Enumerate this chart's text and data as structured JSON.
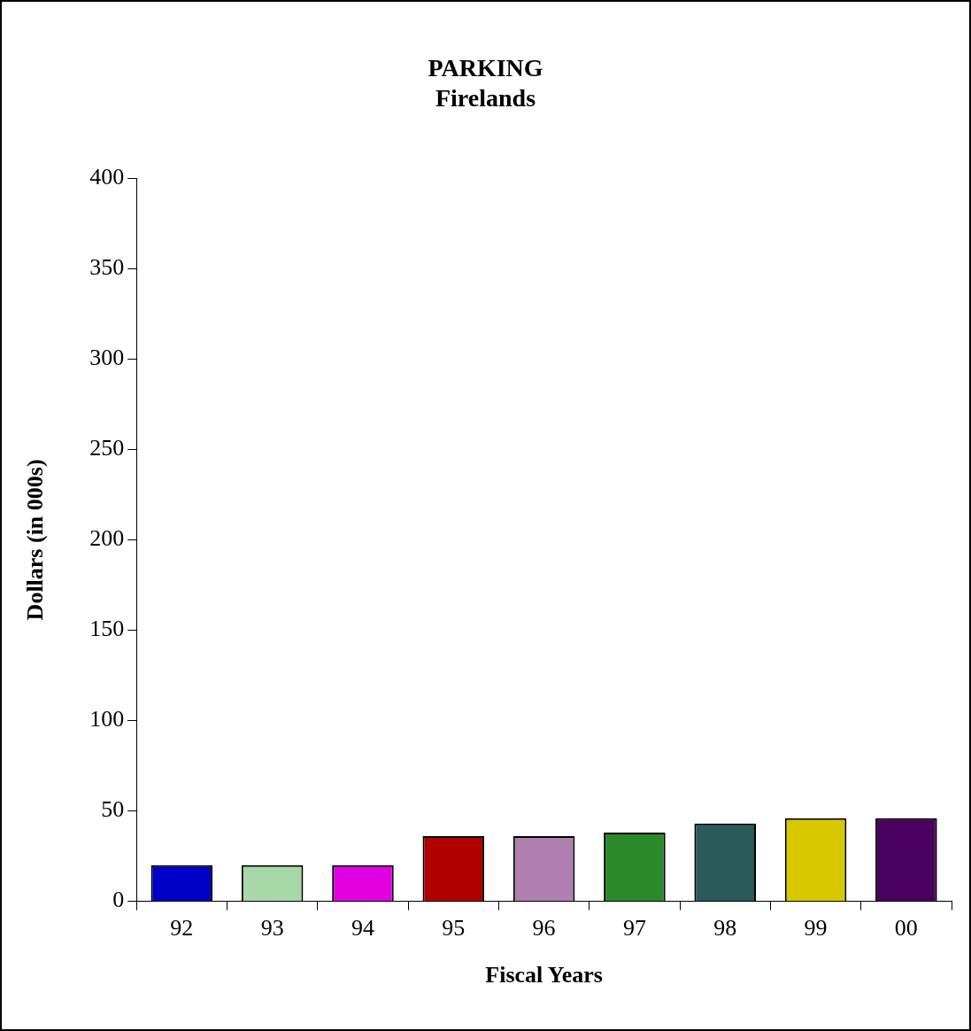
{
  "chart_data": {
    "type": "bar",
    "title": "PARKING",
    "subtitle": "Firelands",
    "xlabel": "Fiscal Years",
    "ylabel": "Dollars (in 000s)",
    "categories": [
      "92",
      "93",
      "94",
      "95",
      "96",
      "97",
      "98",
      "99",
      "00"
    ],
    "values": [
      20,
      20,
      20,
      36,
      36,
      38,
      43,
      46,
      46
    ],
    "colors": [
      "#0000c8",
      "#a8d8a8",
      "#e000e0",
      "#b00000",
      "#b080b0",
      "#2a8a2a",
      "#2a5a5a",
      "#d8c800",
      "#4a0060"
    ],
    "ylim": [
      0,
      400
    ],
    "yticks": [
      0,
      50,
      100,
      150,
      200,
      250,
      300,
      350,
      400
    ],
    "grid": false,
    "legend": false
  }
}
